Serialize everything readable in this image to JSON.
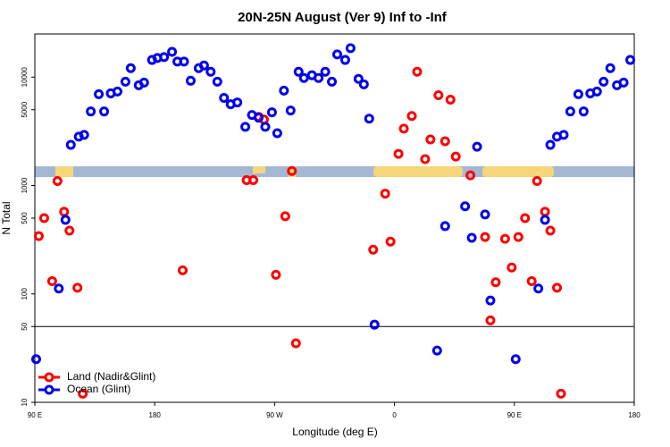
{
  "chart_data": {
    "type": "scatter",
    "title": "20N-25N August (Ver 9)   Inf to -Inf",
    "x_label": "Longitude (deg E)",
    "y_label": "N Total",
    "xlim": [
      90,
      540
    ],
    "xticks": [
      {
        "value": 90,
        "label": "90 E"
      },
      180,
      {
        "value": 270,
        "label": "90 W"
      },
      {
        "value": 360,
        "label": "0"
      },
      {
        "value": 450,
        "label": "90 E"
      },
      {
        "value": 540,
        "label": "180"
      }
    ],
    "ylim": [
      10,
      25000
    ],
    "log_y": true,
    "yticks": [
      10,
      50,
      100,
      500,
      1000,
      5000,
      10000
    ],
    "hline": 50,
    "legend": "bottom-left",
    "series": [
      {
        "name": "Land (Nadir&Glint)",
        "color": "#ff0000",
        "x": [
          93,
          97,
          103,
          107,
          112,
          116,
          122,
          126,
          201,
          249,
          254,
          258,
          262,
          271,
          278,
          283,
          286,
          344,
          353,
          357,
          363,
          367,
          373,
          377,
          383,
          387,
          393,
          398,
          402,
          406,
          417,
          428,
          432,
          436,
          443,
          448,
          453,
          458,
          463,
          467,
          473,
          477,
          482,
          485
        ],
        "values": [
          341,
          500,
          131,
          1100,
          573,
          383,
          114,
          12,
          165,
          1120,
          1120,
          4300,
          4060,
          150,
          521,
          1360,
          35,
          256,
          841,
          304,
          1960,
          3350,
          4380,
          11200,
          1750,
          2660,
          6810,
          2560,
          6190,
          1850,
          1240,
          335,
          57,
          128,
          322,
          175,
          335,
          500,
          131,
          1100,
          573,
          383,
          114,
          12
        ]
      },
      {
        "name": "Ocean (Glint)",
        "color": "#0000ee",
        "x": [
          91,
          108,
          113,
          117,
          123,
          127,
          132,
          138,
          142,
          147,
          152,
          158,
          162,
          168,
          172,
          178,
          182,
          187,
          193,
          197,
          202,
          207,
          213,
          217,
          222,
          227,
          232,
          237,
          242,
          248,
          253,
          258,
          263,
          268,
          272,
          277,
          282,
          288,
          292,
          298,
          303,
          308,
          313,
          317,
          323,
          327,
          333,
          337,
          341,
          345,
          392,
          398,
          413,
          418,
          422,
          428,
          432,
          451,
          468,
          473,
          477,
          482,
          487,
          492,
          498,
          502,
          507,
          512,
          517,
          522,
          527,
          532,
          537
        ],
        "values": [
          25,
          112,
          482,
          2370,
          2820,
          2930,
          4820,
          6950,
          4820,
          7080,
          7360,
          9080,
          12100,
          8410,
          8910,
          14400,
          15000,
          15300,
          17100,
          13900,
          13900,
          9260,
          12100,
          12800,
          11200,
          9080,
          6430,
          5620,
          5840,
          3480,
          4470,
          4220,
          3480,
          4730,
          3040,
          7500,
          4920,
          11200,
          9810,
          10400,
          9810,
          11200,
          9080,
          16200,
          14400,
          18500,
          9620,
          8580,
          4140,
          52,
          30,
          422,
          643,
          329,
          2280,
          541,
          87,
          25,
          112,
          482,
          2370,
          2820,
          2930,
          4820,
          6950,
          4820,
          7080,
          7360,
          9080,
          12100,
          8410,
          8910,
          14400
        ]
      }
    ]
  }
}
